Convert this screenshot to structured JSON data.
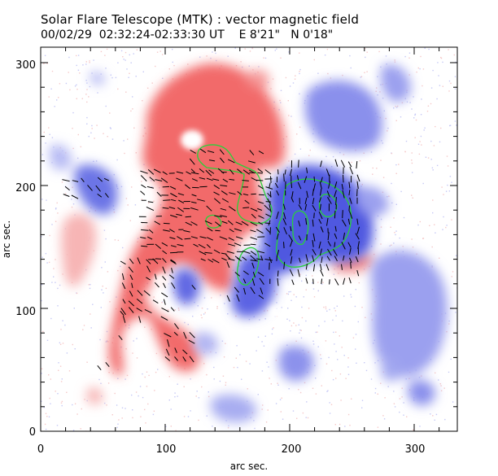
{
  "header": {
    "title": "Solar Flare Telescope (MTK) : vector magnetic field",
    "subtitle": "00/02/29  02:32:24-02:33:30 UT    E 8'21\"   N 0'18\""
  },
  "axes": {
    "xlabel": "arc sec.",
    "ylabel": "arc sec.",
    "x_ticks": [
      "0",
      "100",
      "200",
      "300"
    ],
    "y_ticks": [
      "0",
      "100",
      "200",
      "300"
    ],
    "xlim": [
      0,
      340
    ],
    "ylim": [
      0,
      320
    ]
  },
  "colors": {
    "positive_polarity": "#f07070",
    "negative_polarity": "#6f77e8",
    "neutral_line": "#28d23a",
    "vectors": "#000000",
    "frame": "#000000"
  }
}
